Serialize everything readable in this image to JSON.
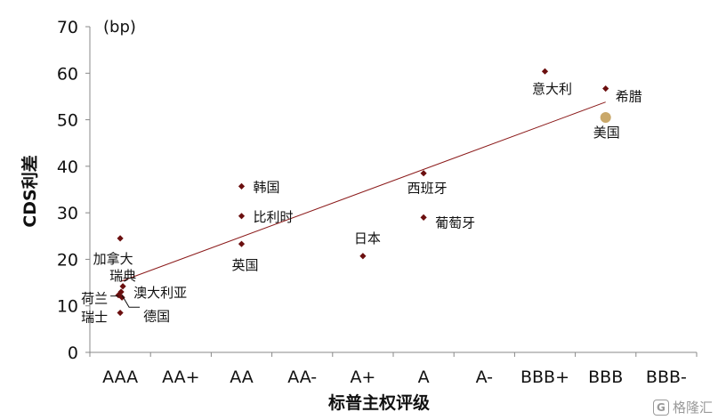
{
  "chart_data": {
    "type": "scatter",
    "unit_label": "(bp)",
    "xlabel": "标普主权评级",
    "ylabel": "CDS利差",
    "categories": [
      "AAA",
      "AA+",
      "AA",
      "AA-",
      "A+",
      "A",
      "A-",
      "BBB+",
      "BBB",
      "BBB-"
    ],
    "ylim": [
      0,
      70
    ],
    "yticks": [
      0,
      10,
      20,
      30,
      40,
      50,
      60,
      70
    ],
    "grid": false,
    "legend": "none",
    "points": [
      {
        "label": "加拿大",
        "x": "AAA",
        "y": 24.5
      },
      {
        "label": "瑞典",
        "x": "AAA",
        "y": 14.2
      },
      {
        "label": "澳大利亚",
        "x": "AAA",
        "y": 13.0
      },
      {
        "label": "荷兰",
        "x": "AAA",
        "y": 12.3
      },
      {
        "label": "德国",
        "x": "AAA",
        "y": 11.8
      },
      {
        "label": "瑞士",
        "x": "AAA",
        "y": 8.5
      },
      {
        "label": "韩国",
        "x": "AA",
        "y": 35.7
      },
      {
        "label": "比利时",
        "x": "AA",
        "y": 29.3
      },
      {
        "label": "英国",
        "x": "AA",
        "y": 23.3
      },
      {
        "label": "日本",
        "x": "A+",
        "y": 20.7
      },
      {
        "label": "西班牙",
        "x": "A",
        "y": 38.5
      },
      {
        "label": "葡萄牙",
        "x": "A",
        "y": 29.0
      },
      {
        "label": "意大利",
        "x": "BBB+",
        "y": 60.4
      },
      {
        "label": "希腊",
        "x": "BBB",
        "y": 56.7
      },
      {
        "label": "美国",
        "x": "BBB",
        "y": 50.5,
        "highlight": true
      }
    ],
    "trendline": {
      "from": {
        "x": "AAA",
        "y": 15.2
      },
      "to": {
        "x": "BBB",
        "y": 53.8
      }
    },
    "colors": {
      "point": "#6b0f0f",
      "highlight": "#c9a86a",
      "trendline": "#8b1a1a",
      "axis": "#888888"
    }
  },
  "watermark": {
    "text": "格隆汇",
    "icon": "gelonghui-logo-icon"
  }
}
